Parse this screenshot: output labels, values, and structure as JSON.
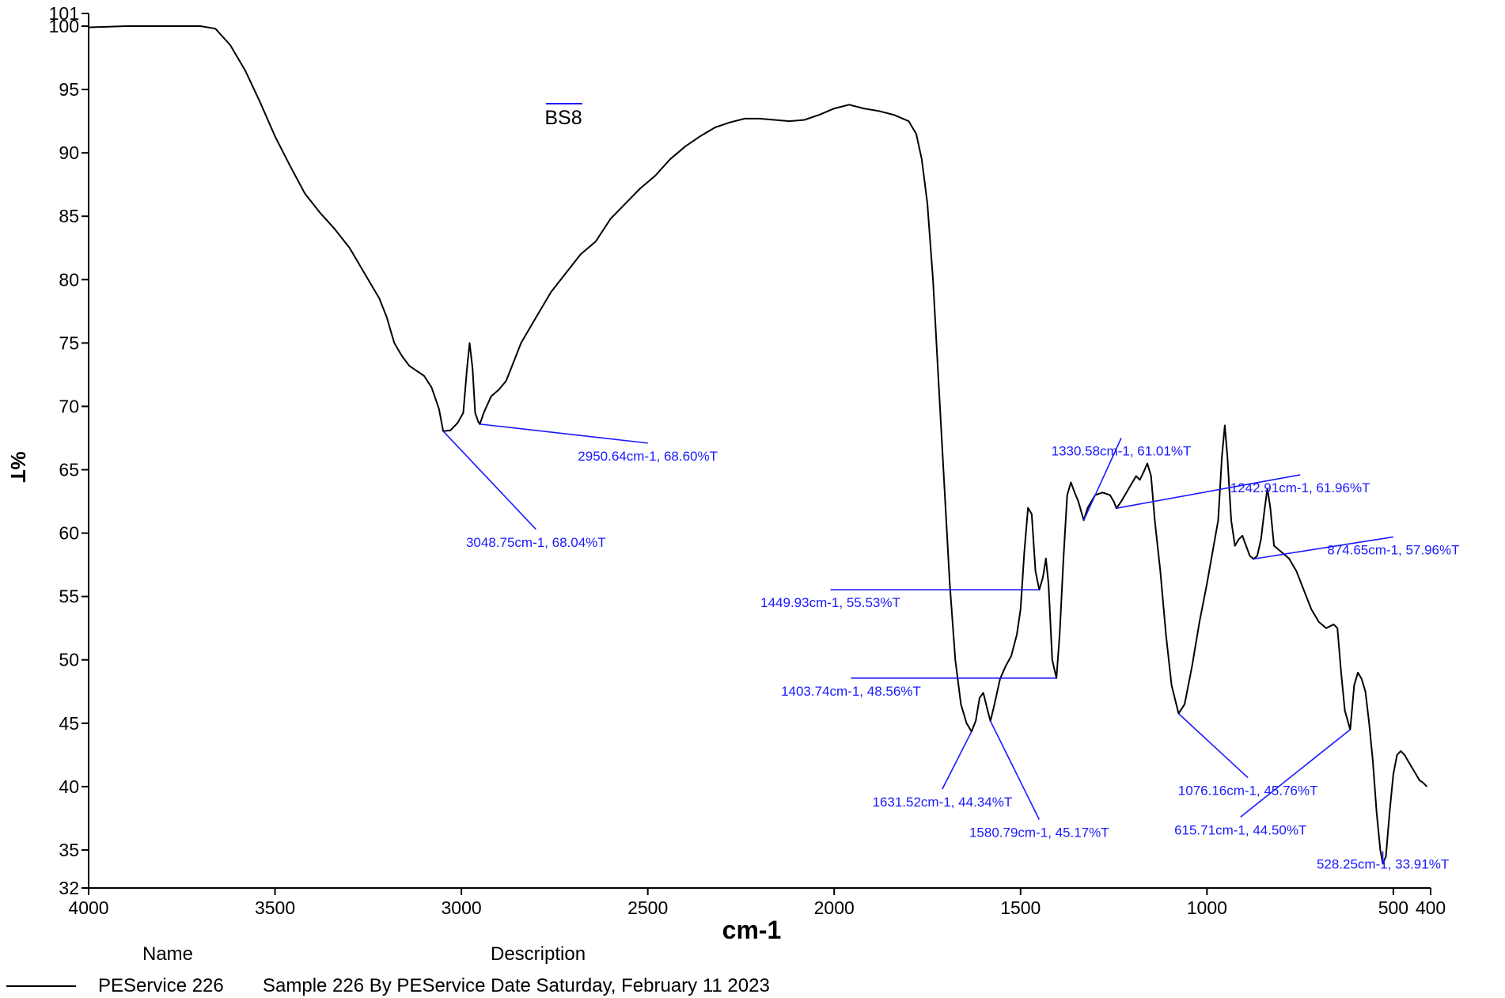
{
  "chart_data": {
    "type": "line",
    "sample_name": "BS8",
    "xlabel": "cm-1",
    "ylabel": "%T",
    "xlim": [
      4000,
      400
    ],
    "ylim": [
      32,
      101
    ],
    "x_ticks": [
      4000,
      3500,
      3000,
      2500,
      2000,
      1500,
      1000,
      500,
      400
    ],
    "x_tick_labels": [
      "4000",
      "3500",
      "3000",
      "2500",
      "2000",
      "1500",
      "1000",
      "500",
      "400"
    ],
    "y_ticks": [
      32,
      35,
      40,
      45,
      50,
      55,
      60,
      65,
      70,
      75,
      80,
      85,
      90,
      95,
      100,
      101
    ],
    "y_tick_labels": [
      "32",
      "35",
      "40",
      "45",
      "50",
      "55",
      "60",
      "65",
      "70",
      "75",
      "80",
      "85",
      "90",
      "95",
      "100",
      "101"
    ],
    "series": [
      {
        "name": "PEService 226",
        "color": "#000000",
        "points": [
          [
            4000,
            99.9
          ],
          [
            3900,
            100.0
          ],
          [
            3800,
            100.0
          ],
          [
            3700,
            100.0
          ],
          [
            3660,
            99.8
          ],
          [
            3620,
            98.5
          ],
          [
            3580,
            96.5
          ],
          [
            3540,
            94.0
          ],
          [
            3500,
            91.3
          ],
          [
            3460,
            89.0
          ],
          [
            3420,
            86.8
          ],
          [
            3380,
            85.3
          ],
          [
            3340,
            84.0
          ],
          [
            3300,
            82.5
          ],
          [
            3260,
            80.5
          ],
          [
            3220,
            78.5
          ],
          [
            3200,
            77.0
          ],
          [
            3180,
            75.0
          ],
          [
            3160,
            74.0
          ],
          [
            3140,
            73.2
          ],
          [
            3120,
            72.8
          ],
          [
            3100,
            72.4
          ],
          [
            3080,
            71.5
          ],
          [
            3060,
            69.8
          ],
          [
            3048.75,
            68.04
          ],
          [
            3030,
            68.1
          ],
          [
            3010,
            68.7
          ],
          [
            2995,
            69.5
          ],
          [
            2985,
            73.0
          ],
          [
            2978,
            75.0
          ],
          [
            2970,
            73.0
          ],
          [
            2963,
            69.5
          ],
          [
            2955,
            68.8
          ],
          [
            2950.64,
            68.6
          ],
          [
            2940,
            69.5
          ],
          [
            2920,
            70.8
          ],
          [
            2900,
            71.3
          ],
          [
            2880,
            72.0
          ],
          [
            2860,
            73.5
          ],
          [
            2840,
            75.0
          ],
          [
            2800,
            77.0
          ],
          [
            2760,
            79.0
          ],
          [
            2720,
            80.5
          ],
          [
            2680,
            82.0
          ],
          [
            2640,
            83.0
          ],
          [
            2600,
            84.8
          ],
          [
            2560,
            86.0
          ],
          [
            2520,
            87.2
          ],
          [
            2480,
            88.2
          ],
          [
            2440,
            89.5
          ],
          [
            2400,
            90.5
          ],
          [
            2360,
            91.3
          ],
          [
            2320,
            92.0
          ],
          [
            2280,
            92.4
          ],
          [
            2240,
            92.7
          ],
          [
            2200,
            92.7
          ],
          [
            2160,
            92.6
          ],
          [
            2120,
            92.5
          ],
          [
            2080,
            92.6
          ],
          [
            2040,
            93.0
          ],
          [
            2000,
            93.5
          ],
          [
            1960,
            93.8
          ],
          [
            1920,
            93.5
          ],
          [
            1880,
            93.3
          ],
          [
            1840,
            93.0
          ],
          [
            1800,
            92.5
          ],
          [
            1780,
            91.5
          ],
          [
            1765,
            89.5
          ],
          [
            1750,
            86.0
          ],
          [
            1735,
            80.0
          ],
          [
            1720,
            72.0
          ],
          [
            1705,
            64.0
          ],
          [
            1690,
            56.0
          ],
          [
            1675,
            50.0
          ],
          [
            1660,
            46.5
          ],
          [
            1645,
            45.0
          ],
          [
            1631.52,
            44.34
          ],
          [
            1620,
            45.2
          ],
          [
            1610,
            47.0
          ],
          [
            1600,
            47.4
          ],
          [
            1590,
            46.2
          ],
          [
            1580.79,
            45.17
          ],
          [
            1570,
            46.5
          ],
          [
            1555,
            48.5
          ],
          [
            1540,
            49.5
          ],
          [
            1525,
            50.3
          ],
          [
            1510,
            52.0
          ],
          [
            1500,
            54.0
          ],
          [
            1490,
            58.5
          ],
          [
            1480,
            62.0
          ],
          [
            1470,
            61.5
          ],
          [
            1460,
            57.0
          ],
          [
            1449.93,
            55.53
          ],
          [
            1440,
            56.5
          ],
          [
            1432,
            58.0
          ],
          [
            1425,
            56.0
          ],
          [
            1415,
            50.0
          ],
          [
            1403.74,
            48.56
          ],
          [
            1395,
            52.0
          ],
          [
            1385,
            58.0
          ],
          [
            1375,
            63.0
          ],
          [
            1365,
            64.0
          ],
          [
            1355,
            63.2
          ],
          [
            1345,
            62.5
          ],
          [
            1330.58,
            61.01
          ],
          [
            1320,
            62.0
          ],
          [
            1300,
            63.0
          ],
          [
            1280,
            63.2
          ],
          [
            1260,
            63.0
          ],
          [
            1250,
            62.5
          ],
          [
            1242.91,
            61.96
          ],
          [
            1230,
            62.5
          ],
          [
            1210,
            63.5
          ],
          [
            1190,
            64.5
          ],
          [
            1180,
            64.2
          ],
          [
            1170,
            64.8
          ],
          [
            1160,
            65.5
          ],
          [
            1150,
            64.5
          ],
          [
            1140,
            61.0
          ],
          [
            1125,
            57.0
          ],
          [
            1110,
            52.0
          ],
          [
            1095,
            48.0
          ],
          [
            1076.16,
            45.76
          ],
          [
            1060,
            46.5
          ],
          [
            1040,
            49.5
          ],
          [
            1020,
            53.0
          ],
          [
            1000,
            56.0
          ],
          [
            985,
            58.5
          ],
          [
            970,
            61.0
          ],
          [
            960,
            66.0
          ],
          [
            952,
            68.5
          ],
          [
            945,
            66.0
          ],
          [
            935,
            61.0
          ],
          [
            925,
            59.0
          ],
          [
            915,
            59.5
          ],
          [
            905,
            59.8
          ],
          [
            895,
            59.0
          ],
          [
            885,
            58.2
          ],
          [
            874.65,
            57.96
          ],
          [
            865,
            58.2
          ],
          [
            855,
            59.5
          ],
          [
            845,
            62.0
          ],
          [
            838,
            63.5
          ],
          [
            830,
            62.0
          ],
          [
            820,
            59.0
          ],
          [
            800,
            58.5
          ],
          [
            780,
            58.0
          ],
          [
            760,
            57.0
          ],
          [
            740,
            55.5
          ],
          [
            720,
            54.0
          ],
          [
            700,
            53.0
          ],
          [
            680,
            52.5
          ],
          [
            660,
            52.8
          ],
          [
            650,
            52.5
          ],
          [
            640,
            49.0
          ],
          [
            630,
            46.0
          ],
          [
            615.71,
            44.5
          ],
          [
            605,
            48.0
          ],
          [
            595,
            49.0
          ],
          [
            585,
            48.5
          ],
          [
            575,
            47.5
          ],
          [
            565,
            45.0
          ],
          [
            555,
            42.0
          ],
          [
            545,
            38.0
          ],
          [
            535,
            35.0
          ],
          [
            528.25,
            33.91
          ],
          [
            520,
            34.5
          ],
          [
            510,
            38.0
          ],
          [
            500,
            41.0
          ],
          [
            490,
            42.5
          ],
          [
            480,
            42.8
          ],
          [
            470,
            42.5
          ],
          [
            460,
            42.0
          ],
          [
            450,
            41.5
          ],
          [
            440,
            41.0
          ],
          [
            430,
            40.5
          ],
          [
            420,
            40.3
          ],
          [
            410,
            40.0
          ]
        ]
      }
    ],
    "peak_annotations": [
      {
        "label": "2950.64cm-1, 68.60%T",
        "x": 2950.64,
        "y": 68.6,
        "lx": 2500,
        "ly": 67.1
      },
      {
        "label": "3048.75cm-1, 68.04%T",
        "x": 3048.75,
        "y": 68.04,
        "lx": 2800,
        "ly": 60.3
      },
      {
        "label": "1449.93cm-1, 55.53%T",
        "x": 1449.93,
        "y": 55.53,
        "lx": 2010,
        "ly": 55.53
      },
      {
        "label": "1403.74cm-1, 48.56%T",
        "x": 1403.74,
        "y": 48.56,
        "lx": 1955,
        "ly": 48.56
      },
      {
        "label": "1631.52cm-1, 44.34%T",
        "x": 1631.52,
        "y": 44.34,
        "lx": 1710,
        "ly": 39.8
      },
      {
        "label": "1580.79cm-1, 45.17%T",
        "x": 1580.79,
        "y": 45.17,
        "lx": 1450,
        "ly": 37.4
      },
      {
        "label": "1330.58cm-1, 61.01%T",
        "x": 1330.58,
        "y": 61.01,
        "lx": 1230,
        "ly": 67.5
      },
      {
        "label": "1242.91cm-1, 61.96%T",
        "x": 1242.91,
        "y": 61.96,
        "lx": 750,
        "ly": 64.6
      },
      {
        "label": "874.65cm-1, 57.96%T",
        "x": 874.65,
        "y": 57.96,
        "lx": 500,
        "ly": 59.7
      },
      {
        "label": "1076.16cm-1, 45.76%T",
        "x": 1076.16,
        "y": 45.76,
        "lx": 890,
        "ly": 40.7
      },
      {
        "label": "615.71cm-1, 44.50%T",
        "x": 615.71,
        "y": 44.5,
        "lx": 910,
        "ly": 37.6
      },
      {
        "label": "528.25cm-1, 33.91%T",
        "x": 528.25,
        "y": 33.91,
        "lx": 528.25,
        "ly": 34.9
      }
    ],
    "legend": {
      "name_header": "Name",
      "description_header": "Description",
      "entries": [
        {
          "name": "PEService 226",
          "description": "Sample 226 By PEService Date Saturday, February 11 2023"
        }
      ]
    },
    "grid": false
  }
}
